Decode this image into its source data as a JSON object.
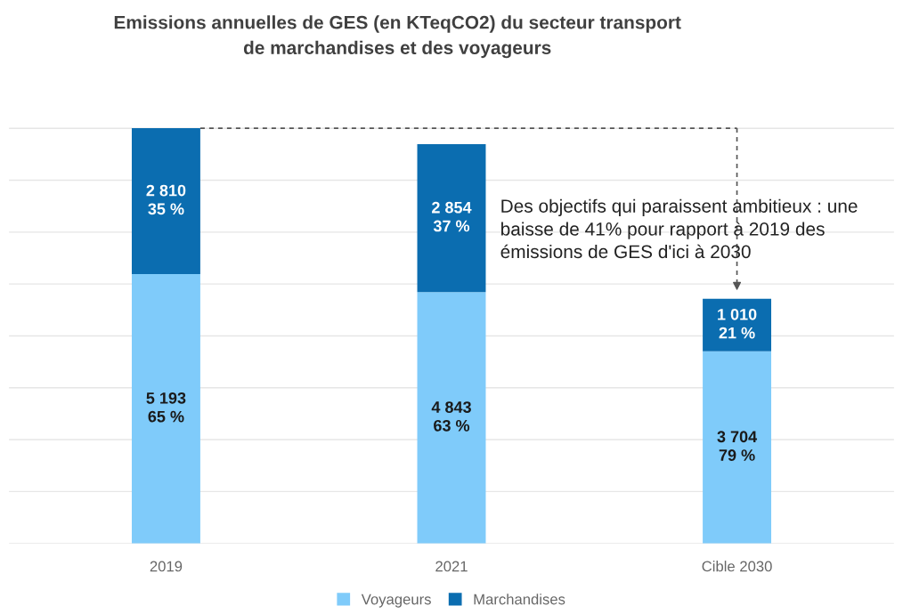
{
  "chart_data": {
    "type": "bar",
    "title": "Emissions annuelles de GES (en KTeqCO2) du secteur transport\nde marchandises et des voyageurs",
    "categories": [
      "2019",
      "2021",
      "Cible 2030"
    ],
    "stacked": true,
    "series": [
      {
        "name": "Voyageurs",
        "color": "#7fcbfa",
        "values": [
          5193,
          4843,
          3704
        ],
        "value_labels": [
          "5 193\n65 %",
          "4 843\n63 %",
          "3 704\n79 %"
        ]
      },
      {
        "name": "Marchandises",
        "color": "#0b6db0",
        "values": [
          2810,
          2854,
          1010
        ],
        "value_labels": [
          "2 810\n35 %",
          "2 854\n37 %",
          "1 010\n21 %"
        ]
      }
    ],
    "ref_lines": [
      {
        "axis": "y",
        "value": 8003,
        "line_style": "dashed",
        "color": "#555555"
      }
    ],
    "yticks": [
      {
        "value": 0,
        "label": null
      },
      {
        "value": 1000,
        "label": null
      },
      {
        "value": 2000,
        "label": null
      },
      {
        "value": 3000,
        "label": null
      },
      {
        "value": 4000,
        "label": null
      },
      {
        "value": 5000,
        "label": null
      },
      {
        "value": 6000,
        "label": null
      },
      {
        "value": 7000,
        "label": null
      },
      {
        "value": 8000,
        "label": null
      }
    ],
    "tick_labels": "x",
    "grid": "y",
    "legend": "bottom",
    "annotations": [
      "Des objectifs qui paraissent ambitieux : une baisse de 41% pour rapport à 2019 des émissions de GES d'ici à 2030"
    ]
  }
}
